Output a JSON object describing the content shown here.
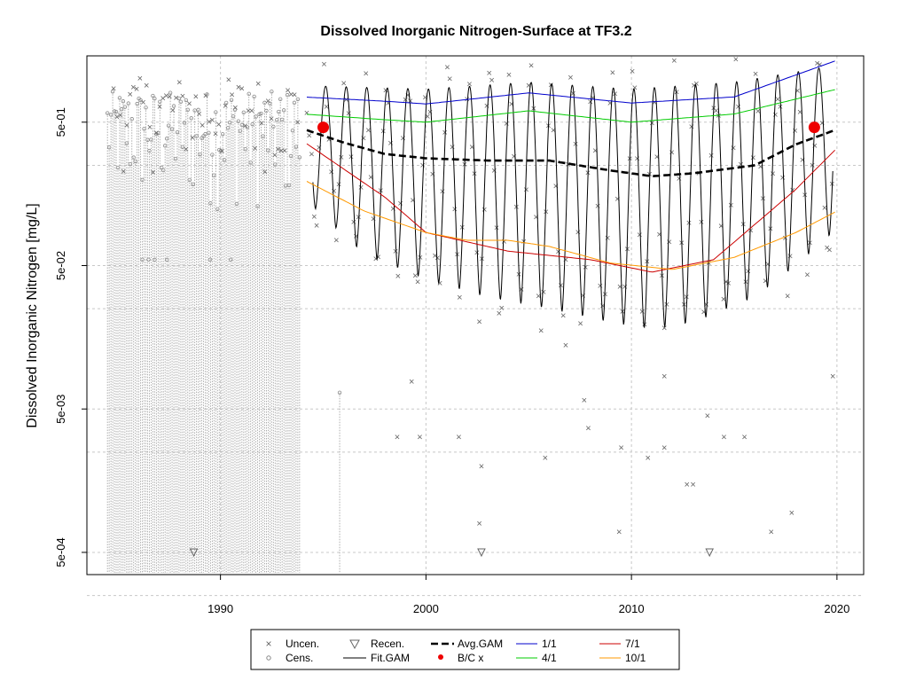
{
  "chart_data": {
    "type": "scatter",
    "title": "Dissolved Inorganic Nitrogen-Surface at TF3.2",
    "xlabel": "",
    "ylabel": "Dissolved Inorganic Nitrogen [mg/L]",
    "x_ticks": [
      1990,
      2000,
      2010,
      2020
    ],
    "y_ticks": [
      {
        "value": 0.0005,
        "label": "5e-04"
      },
      {
        "value": 0.005,
        "label": "5e-03"
      },
      {
        "value": 0.05,
        "label": "5e-02"
      },
      {
        "value": 0.5,
        "label": "5e-01"
      }
    ],
    "y_gridlines": [
      0.00025,
      0.0025,
      0.025,
      0.25
    ],
    "xlim": [
      1983.5,
      2021.3
    ],
    "ylim": [
      0.00035,
      1.45
    ],
    "log_y": true,
    "grid": true,
    "legend_position": "bottom-center",
    "colors": {
      "uncensored": "#666666",
      "censored": "#888888",
      "fit_gam": "#000000",
      "avg_gam": "#000000",
      "bc_point": "#ee0000",
      "jan1": "#0000cc",
      "apr1": "#00cc00",
      "jul1": "#cc0000",
      "oct1": "#ff9900"
    },
    "legend": {
      "uncensored": "Uncen.",
      "censored": "Cens.",
      "recensored": "Recen.",
      "fit_gam": "Fit.GAM",
      "avg_gam": "Avg.GAM",
      "bc": "B/C x",
      "jan1": "1/1",
      "apr1": "4/1",
      "jul1": "7/1",
      "oct1": "10/1"
    },
    "series": [
      {
        "name": "1/1",
        "x": [
          1994,
          1998,
          2000,
          2005,
          2010,
          2015,
          2020
        ],
        "y": [
          0.75,
          0.7,
          0.67,
          0.8,
          0.68,
          0.75,
          1.35
        ]
      },
      {
        "name": "4/1",
        "x": [
          1994,
          1998,
          2000,
          2005,
          2010,
          2015,
          2020
        ],
        "y": [
          0.57,
          0.52,
          0.5,
          0.6,
          0.5,
          0.57,
          0.85
        ]
      },
      {
        "name": "7/1",
        "x": [
          1994,
          1998,
          2000,
          2004,
          2008,
          2011,
          2014,
          2018,
          2020
        ],
        "y": [
          0.37,
          0.15,
          0.085,
          0.063,
          0.055,
          0.045,
          0.055,
          0.17,
          0.33
        ]
      },
      {
        "name": "10/1",
        "x": [
          1994,
          1997,
          2000,
          2002,
          2004,
          2006,
          2009,
          2012,
          2015,
          2018,
          2020
        ],
        "y": [
          0.2,
          0.12,
          0.085,
          0.075,
          0.075,
          0.068,
          0.052,
          0.047,
          0.057,
          0.085,
          0.12
        ]
      },
      {
        "name": "Avg.GAM",
        "x": [
          1994.2,
          1996,
          1998,
          2000,
          2003,
          2006,
          2009,
          2011,
          2013,
          2016,
          2018,
          2019.9
        ],
        "y": [
          0.44,
          0.36,
          0.3,
          0.28,
          0.27,
          0.27,
          0.23,
          0.21,
          0.22,
          0.25,
          0.35,
          0.44
        ]
      }
    ],
    "fit_gam_seasonal": {
      "years": [
        1994.5,
        2019.8
      ],
      "peak": {
        "x": [
          1994,
          2000,
          2005,
          2010,
          2015,
          2020
        ],
        "y": [
          0.9,
          0.85,
          0.95,
          0.85,
          0.95,
          1.25
        ]
      },
      "trough": {
        "x": [
          1994,
          1997,
          2000,
          2003,
          2006,
          2009,
          2011,
          2013,
          2016,
          2018,
          2020
        ],
        "y": [
          0.15,
          0.06,
          0.04,
          0.03,
          0.025,
          0.02,
          0.018,
          0.02,
          0.03,
          0.05,
          0.09
        ]
      }
    },
    "bc_points": [
      {
        "x": 1995.0,
        "y": 0.46
      },
      {
        "x": 2018.9,
        "y": 0.46
      }
    ],
    "censored_sampling_period": [
      1984.5,
      1993.9
    ]
  }
}
